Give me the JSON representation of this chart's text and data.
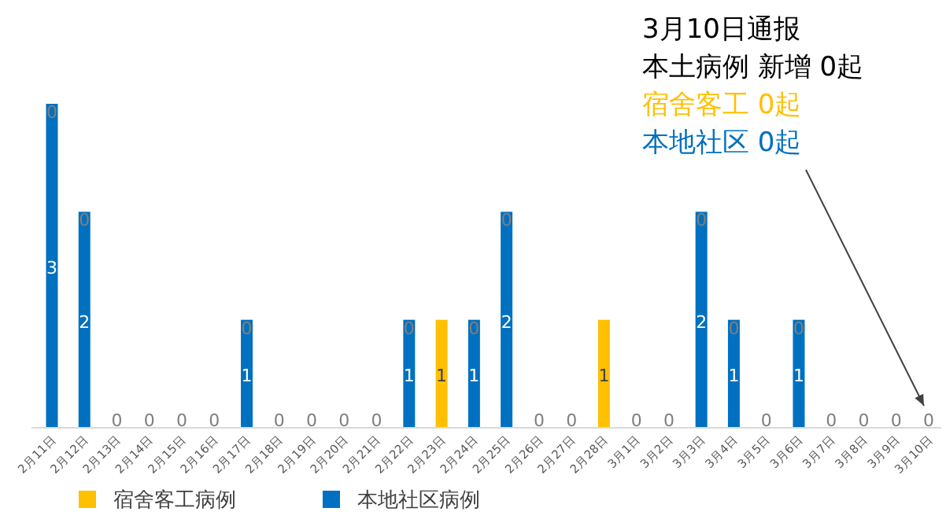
{
  "chart_data": {
    "type": "bar",
    "stacked": true,
    "legend": "bottom",
    "categories": [
      "2月11日",
      "2月12日",
      "2月13日",
      "2月14日",
      "2月15日",
      "2月16日",
      "2月17日",
      "2月18日",
      "2月19日",
      "2月20日",
      "2月21日",
      "2月22日",
      "2月23日",
      "2月24日",
      "2月25日",
      "2月26日",
      "2月27日",
      "2月28日",
      "3月1日",
      "3月2日",
      "3月3日",
      "3月4日",
      "3月5日",
      "3月6日",
      "3月7日",
      "3月8日",
      "3月9日",
      "3月10日"
    ],
    "series": [
      {
        "name": "本地社区病例",
        "color": "#0070c0",
        "values": [
          3,
          2,
          0,
          0,
          0,
          0,
          1,
          0,
          0,
          0,
          0,
          1,
          0,
          1,
          2,
          0,
          0,
          0,
          0,
          0,
          2,
          1,
          0,
          1,
          0,
          0,
          0,
          0
        ],
        "value_labels": [
          "3",
          "2",
          "0",
          "0",
          "0",
          "0",
          "1",
          "0",
          "0",
          "0",
          "0",
          "1",
          null,
          "1",
          "2",
          "0",
          "0",
          null,
          "0",
          "0",
          "2",
          "1",
          "0",
          "1",
          "0",
          "0",
          "0",
          "0"
        ]
      },
      {
        "name": "宿舍客工病例",
        "color": "#ffc000",
        "values": [
          0,
          0,
          0,
          0,
          0,
          0,
          0,
          0,
          0,
          0,
          0,
          0,
          1,
          0,
          0,
          0,
          0,
          1,
          0,
          0,
          0,
          0,
          0,
          0,
          0,
          0,
          0,
          0
        ],
        "value_labels": [
          "0",
          "0",
          null,
          null,
          null,
          null,
          "0",
          null,
          null,
          null,
          null,
          "0",
          "1",
          "0",
          "0",
          null,
          null,
          "1",
          null,
          null,
          "0",
          "0",
          null,
          "0",
          null,
          null,
          null,
          null
        ]
      }
    ],
    "annotations": [
      "3月10日通报",
      "本土病例 新增 0起",
      "宿舍客工 0起",
      "本地社区 0起"
    ]
  }
}
